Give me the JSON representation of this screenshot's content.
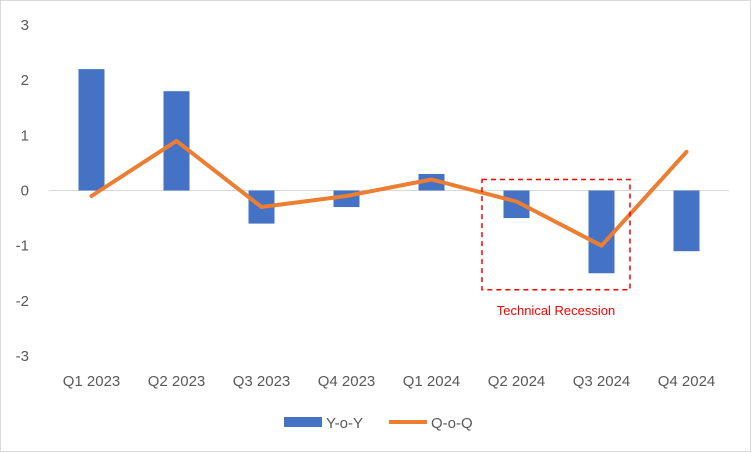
{
  "chart_data": {
    "type": "bar",
    "title": "",
    "xlabel": "",
    "ylabel": "",
    "categories": [
      "Q1 2023",
      "Q2 2023",
      "Q3 2023",
      "Q4 2023",
      "Q1 2024",
      "Q2 2024",
      "Q3 2024",
      "Q4 2024"
    ],
    "ylim": [
      -3,
      3
    ],
    "yticks": [
      3,
      2,
      1,
      0,
      -1,
      -2,
      -3
    ],
    "grid": false,
    "legend_position": "bottom",
    "series": [
      {
        "name": "Y-o-Y",
        "type": "bar",
        "color": "#4472C4",
        "values": [
          2.2,
          1.8,
          -0.6,
          -0.3,
          0.3,
          -0.5,
          -1.5,
          -1.1
        ]
      },
      {
        "name": "Q-o-Q",
        "type": "line",
        "color": "#ED7D31",
        "values": [
          -0.1,
          0.9,
          -0.3,
          -0.1,
          0.2,
          -0.2,
          -1.0,
          0.7
        ]
      }
    ],
    "annotations": [
      {
        "text": "Technical Recession",
        "style": "dashed-box",
        "color": "#FF0000",
        "x_range": [
          "Q2 2024",
          "Q3 2024"
        ],
        "y_range": [
          -1.8,
          0.2
        ]
      }
    ]
  }
}
